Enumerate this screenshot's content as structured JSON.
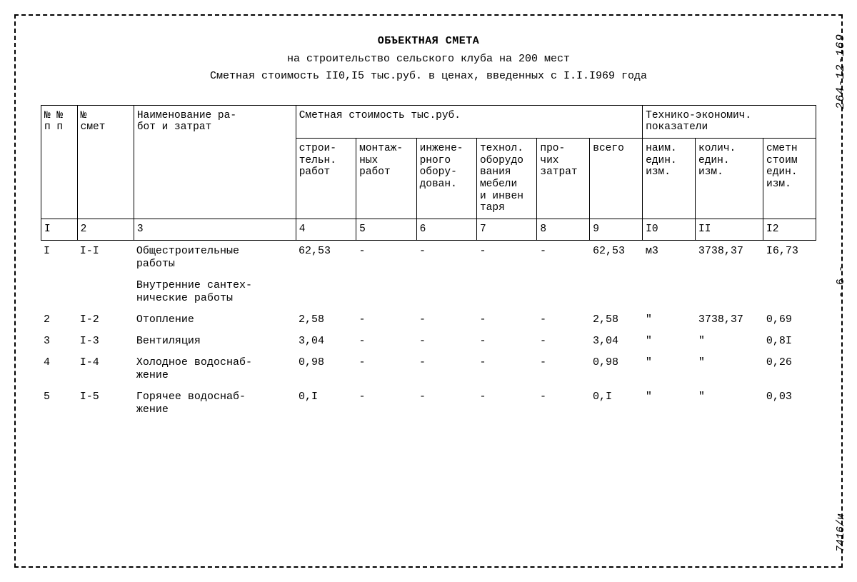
{
  "doc_code_top": "264-12-169",
  "page_num": "- 6 -",
  "doc_code_bottom": "7416/и",
  "title": {
    "main": "ОБЪЕКТНАЯ СМЕТА",
    "sub": "на строительство сельского клуба на 200 мест",
    "cost": "Сметная стоимость II0,I5 тыс.руб. в ценах, введенных с I.I.I969 года"
  },
  "headers": {
    "col1": "№ №\nп п",
    "col2": "№\nсмет",
    "col3": "Наименование ра-\nбот и затрат",
    "group_cost": "Сметная стоимость тыс.руб.",
    "col4": "строи-\nтельн.\nработ",
    "col5": "монтаж-\nных\nработ",
    "col6": "инжене-\nрного\nобору-\nдован.",
    "col7": "технол.\nоборудо\nвания\nмебели\nи инвен\nтаря",
    "col8": "про-\nчих\nзатрат",
    "col9": "всего",
    "group_tech": "Технико-экономич.\nпоказатели",
    "col10": "наим.\nедин.\nизм.",
    "col11": "колич.\nедин.\nизм.",
    "col12": "сметн\nстоим\nедин.\nизм."
  },
  "col_nums": [
    "I",
    "2",
    "3",
    "4",
    "5",
    "6",
    "7",
    "8",
    "9",
    "I0",
    "II",
    "I2"
  ],
  "rows": [
    {
      "n": "I",
      "code": "I-I",
      "name": "Общестроительные\nработы",
      "c4": "62,53",
      "c5": "-",
      "c6": "-",
      "c7": "-",
      "c8": "-",
      "c9": "62,53",
      "c10": "м3",
      "c11": "3738,37",
      "c12": "I6,73"
    },
    {
      "subheading": "Внутренние сантех-\nнические работы"
    },
    {
      "n": "2",
      "code": "I-2",
      "name": "Отопление",
      "c4": "2,58",
      "c5": "-",
      "c6": "-",
      "c7": "-",
      "c8": "-",
      "c9": "2,58",
      "c10": "\"",
      "c11": "3738,37",
      "c12": "0,69"
    },
    {
      "n": "3",
      "code": "I-3",
      "name": "Вентиляция",
      "c4": "3,04",
      "c5": "-",
      "c6": "-",
      "c7": "-",
      "c8": "-",
      "c9": "3,04",
      "c10": "\"",
      "c11": "\"",
      "c12": "0,8I"
    },
    {
      "n": "4",
      "code": "I-4",
      "name": "Холодное водоснаб-\nжение",
      "c4": "0,98",
      "c5": "-",
      "c6": "-",
      "c7": "-",
      "c8": "-",
      "c9": "0,98",
      "c10": "\"",
      "c11": "\"",
      "c12": "0,26"
    },
    {
      "n": "5",
      "code": "I-5",
      "name": "Горячее водоснаб-\nжение",
      "c4": "0,I",
      "c5": "-",
      "c6": "-",
      "c7": "-",
      "c8": "-",
      "c9": "0,I",
      "c10": "\"",
      "c11": "\"",
      "c12": "0,03"
    }
  ]
}
